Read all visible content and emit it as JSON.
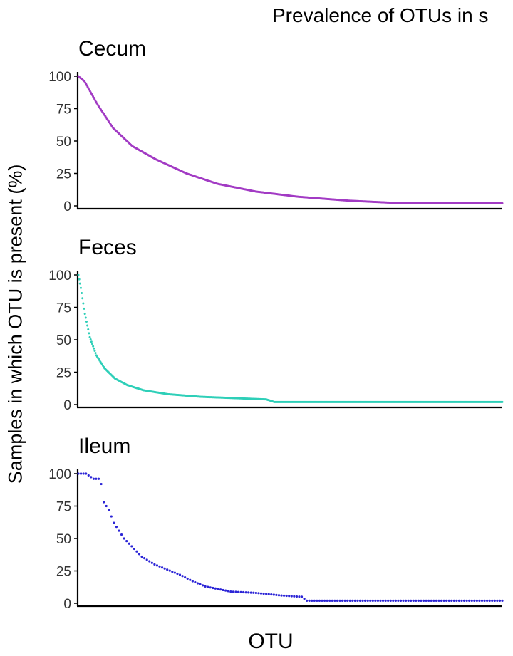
{
  "chart_data": {
    "type": "scatter",
    "title": "Prevalence of OTUs in s",
    "xlabel": "OTU",
    "ylabel": "Samples in which OTU is present (%)",
    "ylim": [
      0,
      100
    ],
    "yticks": [
      0,
      25,
      50,
      75,
      100
    ],
    "grid": false,
    "legend": "none",
    "panels": [
      {
        "name": "Cecum",
        "color": "#a23bc4",
        "n_otus": 550,
        "profile": [
          [
            0,
            100
          ],
          [
            8,
            96
          ],
          [
            25,
            78
          ],
          [
            45,
            60
          ],
          [
            70,
            46
          ],
          [
            100,
            36
          ],
          [
            140,
            25
          ],
          [
            180,
            17
          ],
          [
            230,
            11
          ],
          [
            285,
            7
          ],
          [
            350,
            4
          ],
          [
            420,
            2
          ],
          [
            550,
            2
          ]
        ]
      },
      {
        "name": "Feces",
        "color": "#2ecfb8",
        "n_otus": 520,
        "profile": [
          [
            0,
            100
          ],
          [
            3,
            90
          ],
          [
            8,
            70
          ],
          [
            14,
            52
          ],
          [
            22,
            38
          ],
          [
            32,
            28
          ],
          [
            45,
            20
          ],
          [
            60,
            15
          ],
          [
            80,
            11
          ],
          [
            110,
            8
          ],
          [
            150,
            6
          ],
          [
            230,
            4
          ],
          [
            240,
            2
          ],
          [
            520,
            2
          ]
        ]
      },
      {
        "name": "Ileum",
        "color": "#2b24d6",
        "n_otus": 168,
        "profile": [
          [
            0,
            100
          ],
          [
            3,
            100
          ],
          [
            6,
            96
          ],
          [
            8,
            96
          ],
          [
            9,
            92
          ],
          [
            10,
            78
          ],
          [
            12,
            72
          ],
          [
            14,
            62
          ],
          [
            16,
            56
          ],
          [
            18,
            50
          ],
          [
            22,
            42
          ],
          [
            25,
            36
          ],
          [
            30,
            30
          ],
          [
            35,
            26
          ],
          [
            40,
            22
          ],
          [
            45,
            17
          ],
          [
            50,
            13
          ],
          [
            55,
            11
          ],
          [
            60,
            9
          ],
          [
            70,
            8
          ],
          [
            80,
            6
          ],
          [
            88,
            5
          ],
          [
            90,
            2
          ],
          [
            168,
            2
          ]
        ]
      }
    ]
  }
}
